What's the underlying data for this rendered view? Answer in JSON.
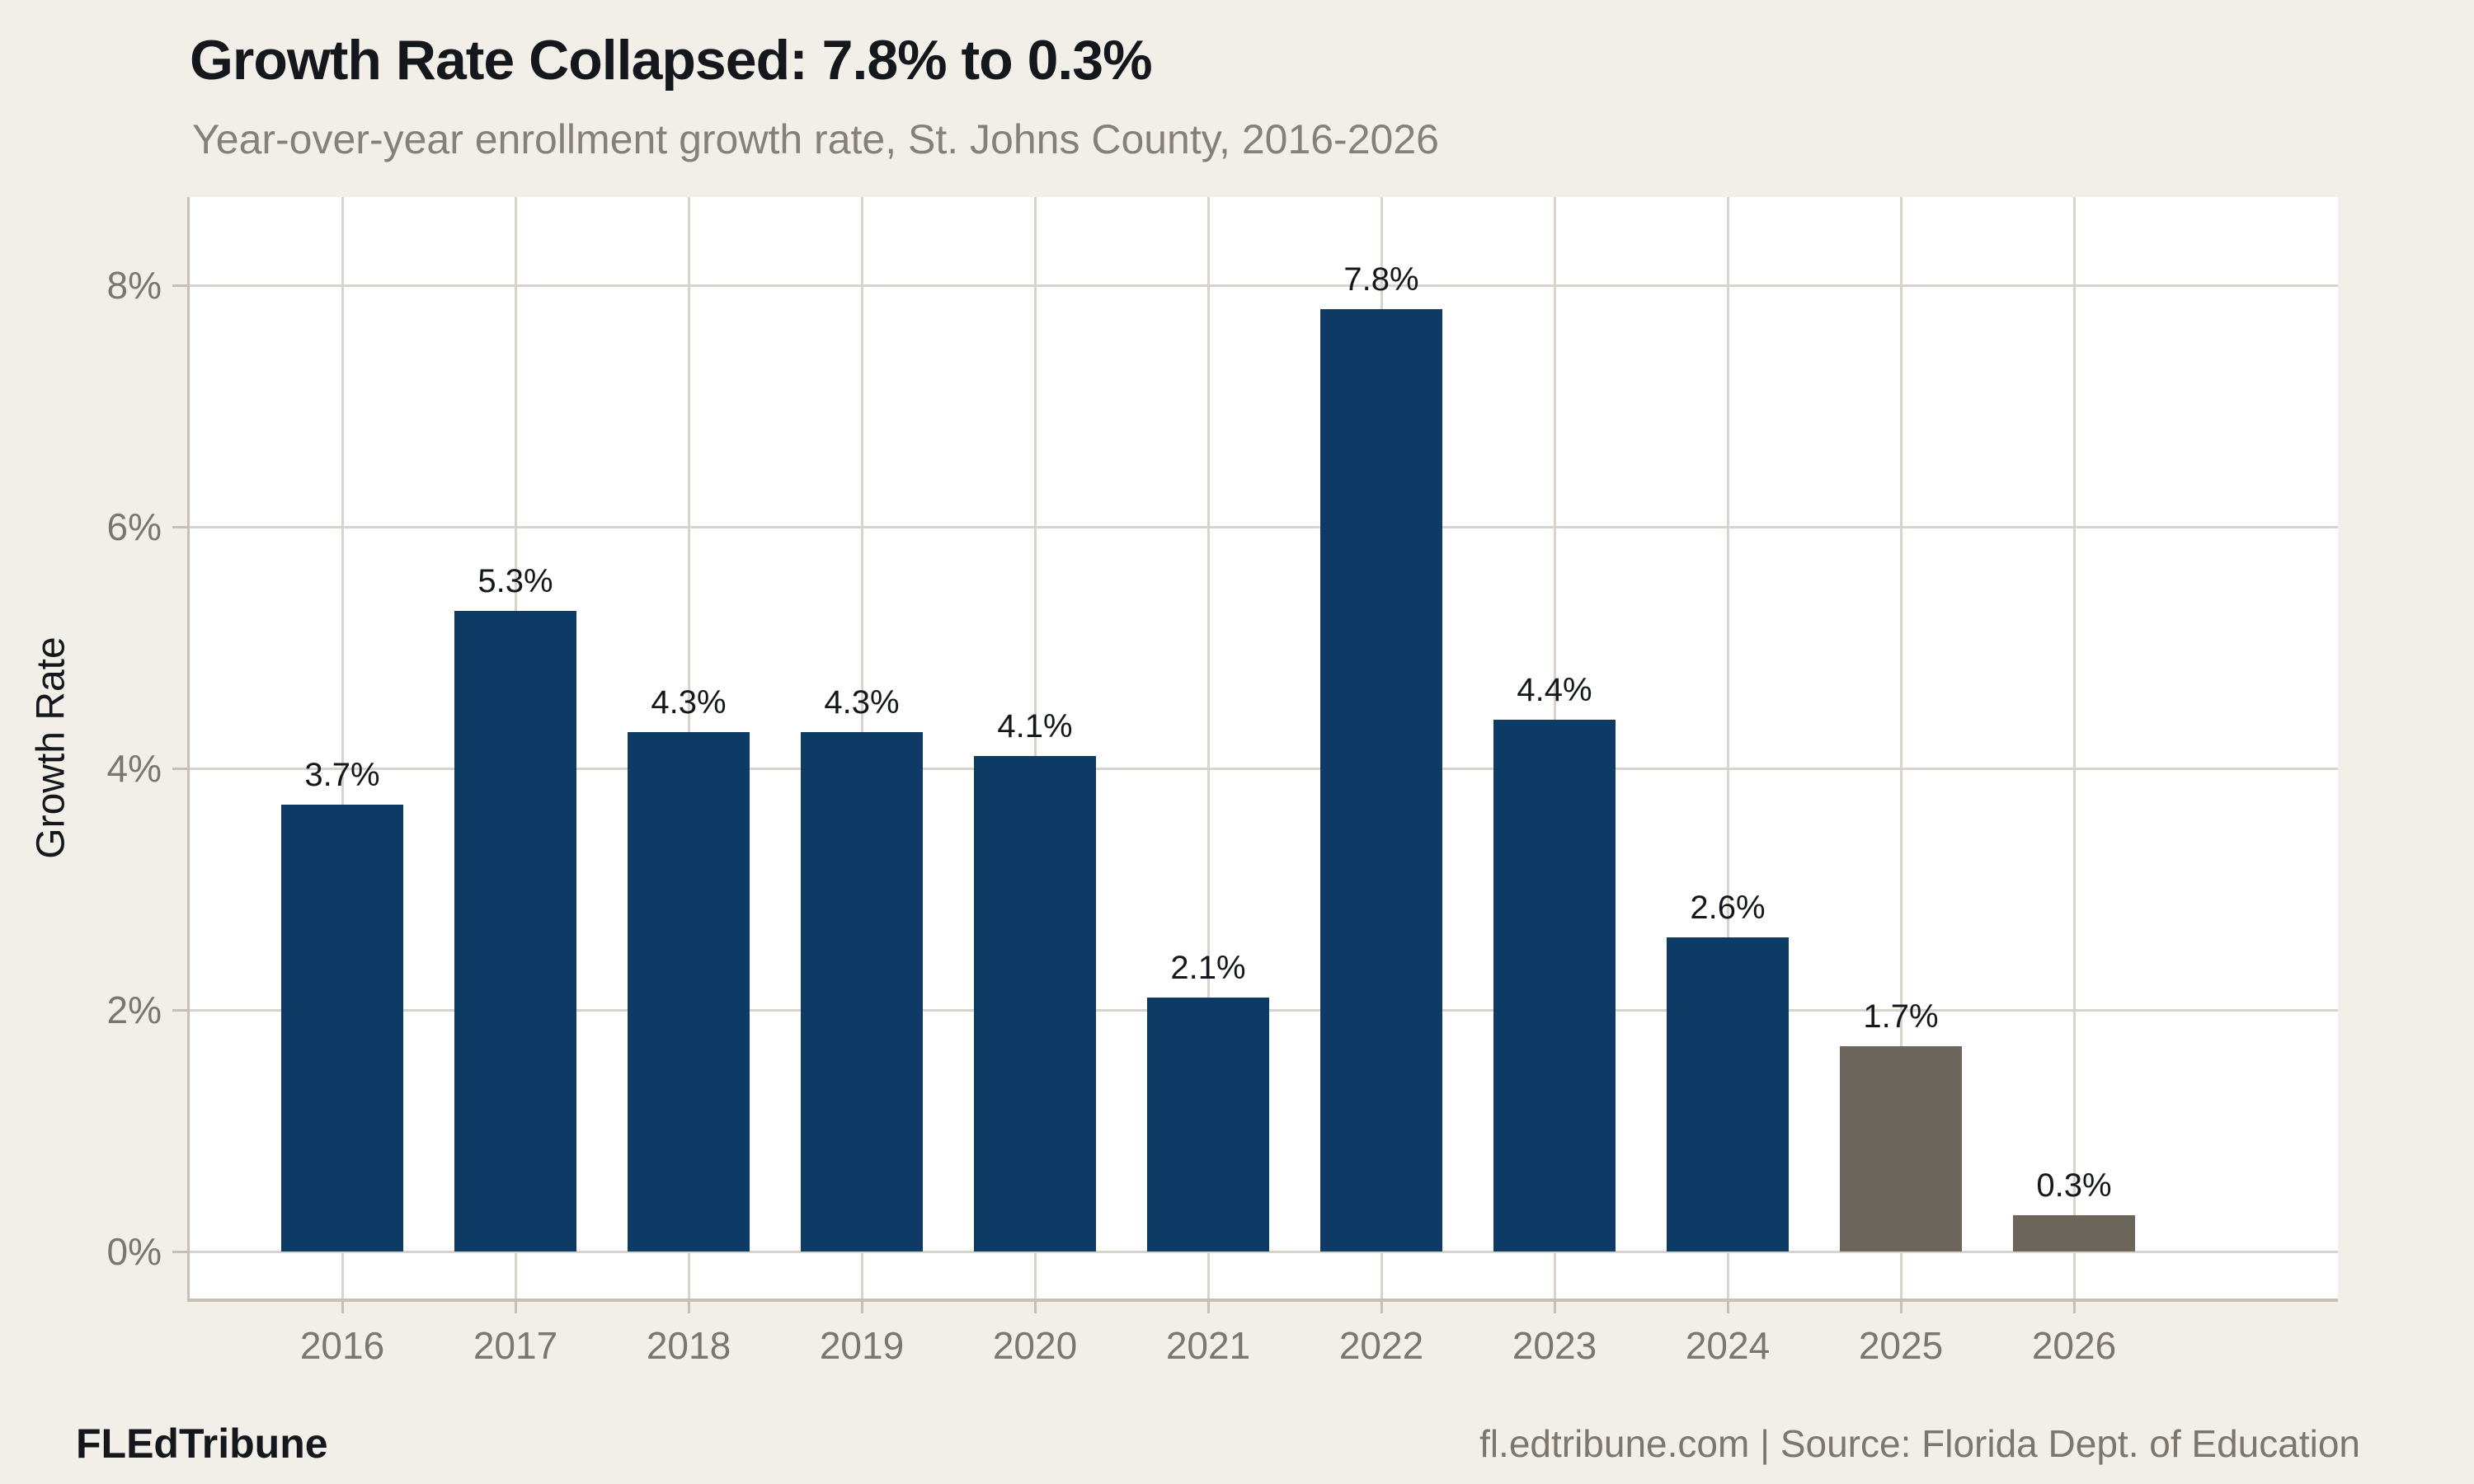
{
  "header": {
    "title": "Growth Rate Collapsed: 7.8% to 0.3%",
    "subtitle": "Year-over-year enrollment growth rate, St. Johns County, 2016-2026"
  },
  "chart_data": {
    "type": "bar",
    "title": "Growth Rate Collapsed: 7.8% to 0.3%",
    "subtitle": "Year-over-year enrollment growth rate, St. Johns County, 2016-2026",
    "xlabel": "",
    "ylabel": "Growth Rate",
    "categories": [
      "2016",
      "2017",
      "2018",
      "2019",
      "2020",
      "2021",
      "2022",
      "2023",
      "2024",
      "2025",
      "2026"
    ],
    "values": [
      3.7,
      5.3,
      4.3,
      4.3,
      4.1,
      2.1,
      7.8,
      4.4,
      2.6,
      1.7,
      0.3
    ],
    "bar_labels": [
      "3.7%",
      "5.3%",
      "4.3%",
      "4.3%",
      "4.1%",
      "2.1%",
      "7.8%",
      "4.4%",
      "2.6%",
      "1.7%",
      "0.3%"
    ],
    "point_styles": [
      "primary",
      "primary",
      "primary",
      "primary",
      "primary",
      "primary",
      "primary",
      "primary",
      "primary",
      "muted",
      "muted"
    ],
    "yticks": [
      0,
      2,
      4,
      6,
      8
    ],
    "ytick_labels": [
      "0%",
      "2%",
      "4%",
      "6%",
      "8%"
    ],
    "ylim": [
      -0.39,
      8.73
    ],
    "grid": true,
    "legend": "none",
    "colors": {
      "bar_primary": "#0d3b66",
      "bar_muted": "#6b655c",
      "grid": "#d9d4cb",
      "axis": "#c6c0b5",
      "tick_text": "#7b766e",
      "value_text": "#14181c",
      "background": "#f2efe9",
      "panel": "#ffffff"
    }
  },
  "footer": {
    "brand": "FLEdTribune",
    "source": "fl.edtribune.com | Source: Florida Dept. of Education"
  }
}
